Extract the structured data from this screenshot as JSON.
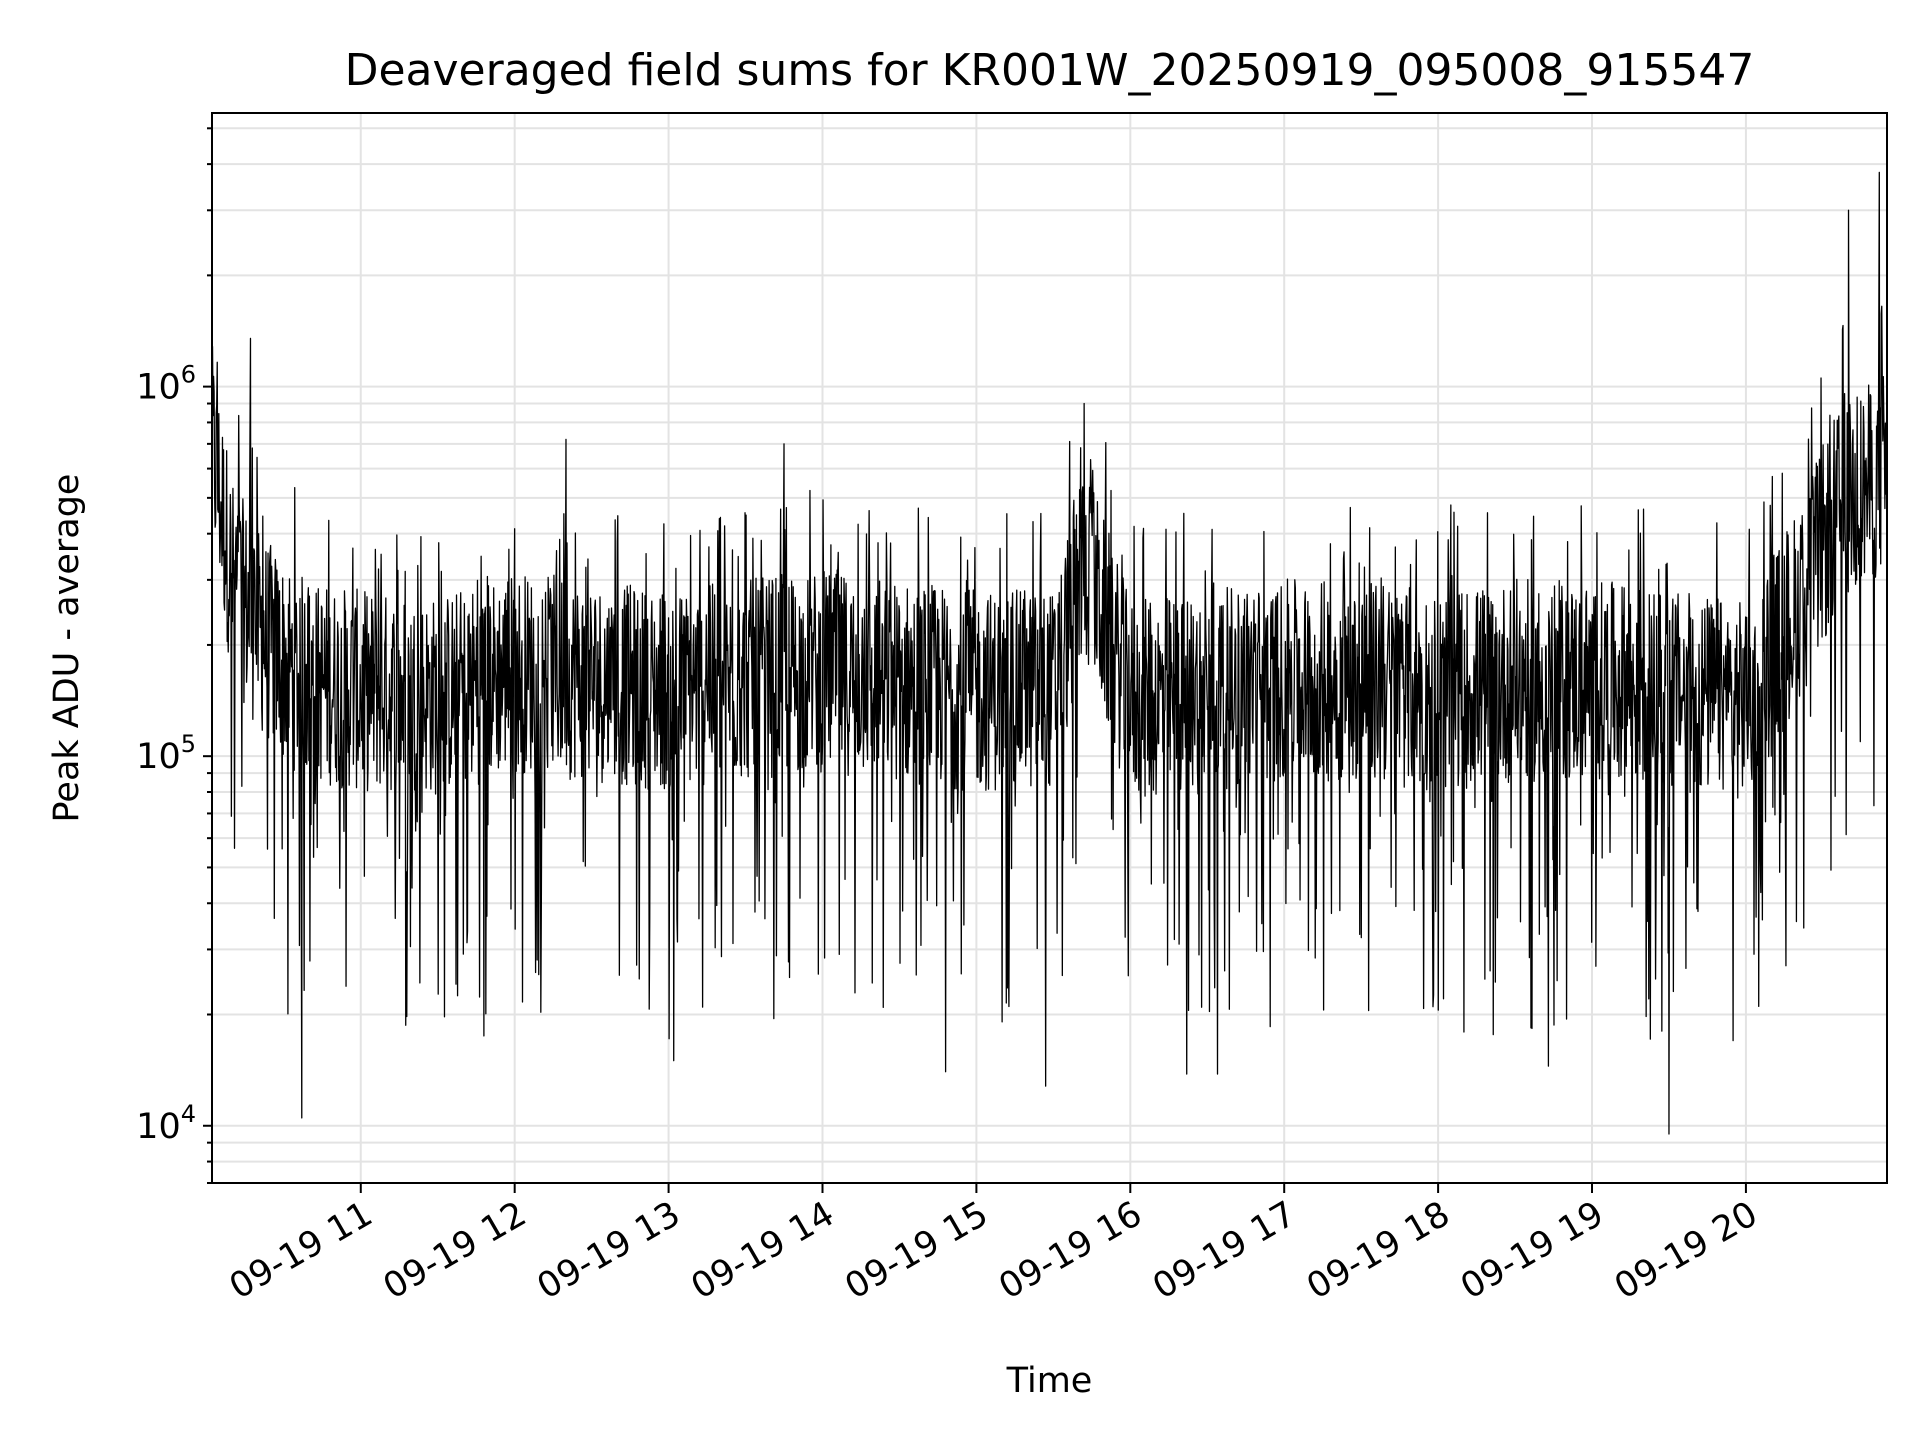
{
  "chart_data": {
    "type": "line",
    "title": "Deaveraged field sums for KR001W_20250919_095008_915547",
    "xlabel": "Time",
    "ylabel": "Peak ADU - average",
    "yscale": "log",
    "ylim": [
      7000,
      5500000
    ],
    "xlim": [
      "2025-09-19T10:02:00",
      "2025-09-19T20:55:00"
    ],
    "grid": true,
    "line_color": "#000000",
    "x_ticks": [
      {
        "label": "09-19 11",
        "value": "2025-09-19T11:00:00"
      },
      {
        "label": "09-19 12",
        "value": "2025-09-19T12:00:00"
      },
      {
        "label": "09-19 13",
        "value": "2025-09-19T13:00:00"
      },
      {
        "label": "09-19 14",
        "value": "2025-09-19T14:00:00"
      },
      {
        "label": "09-19 15",
        "value": "2025-09-19T15:00:00"
      },
      {
        "label": "09-19 16",
        "value": "2025-09-19T16:00:00"
      },
      {
        "label": "09-19 17",
        "value": "2025-09-19T17:00:00"
      },
      {
        "label": "09-19 18",
        "value": "2025-09-19T18:00:00"
      },
      {
        "label": "09-19 19",
        "value": "2025-09-19T19:00:00"
      },
      {
        "label": "09-19 20",
        "value": "2025-09-19T20:00:00"
      }
    ],
    "y_ticks": [
      {
        "base": "10",
        "exp": "4",
        "value": 10000
      },
      {
        "base": "10",
        "exp": "5",
        "value": 100000
      },
      {
        "base": "10",
        "exp": "6",
        "value": 1000000
      }
    ],
    "series": [
      {
        "values": [
          [
            "2025-09-19T10:02:00",
            700000
          ],
          [
            "2025-09-19T10:10:00",
            300000
          ],
          [
            "2025-09-19T10:20:00",
            220000
          ],
          [
            "2025-09-19T10:30:00",
            180000
          ],
          [
            "2025-09-19T10:40:00",
            160000
          ],
          [
            "2025-09-19T11:00:00",
            150000
          ],
          [
            "2025-09-19T11:30:00",
            145000
          ],
          [
            "2025-09-19T12:00:00",
            170000
          ],
          [
            "2025-09-19T12:30:00",
            160000
          ],
          [
            "2025-09-19T13:00:00",
            150000
          ],
          [
            "2025-09-19T13:30:00",
            160000
          ],
          [
            "2025-09-19T14:00:00",
            170000
          ],
          [
            "2025-09-19T14:30:00",
            160000
          ],
          [
            "2025-09-19T15:00:00",
            150000
          ],
          [
            "2025-09-19T15:30:00",
            150000
          ],
          [
            "2025-09-19T15:42:00",
            350000
          ],
          [
            "2025-09-19T16:00:00",
            140000
          ],
          [
            "2025-09-19T16:30:00",
            150000
          ],
          [
            "2025-09-19T17:00:00",
            160000
          ],
          [
            "2025-09-19T17:30:00",
            160000
          ],
          [
            "2025-09-19T18:00:00",
            150000
          ],
          [
            "2025-09-19T18:30:00",
            160000
          ],
          [
            "2025-09-19T19:00:00",
            160000
          ],
          [
            "2025-09-19T19:30:00",
            150000
          ],
          [
            "2025-09-19T20:00:00",
            140000
          ],
          [
            "2025-09-19T20:20:00",
            250000
          ],
          [
            "2025-09-19T20:35:00",
            450000
          ],
          [
            "2025-09-19T20:55:00",
            600000
          ]
        ],
        "spikes": [
          [
            "2025-09-19T10:17:00",
            1350000
          ],
          [
            "2025-09-19T10:37:00",
            10500
          ],
          [
            "2025-09-19T11:48:00",
            17500
          ],
          [
            "2025-09-19T12:20:00",
            720000
          ],
          [
            "2025-09-19T13:02:00",
            15000
          ],
          [
            "2025-09-19T13:45:00",
            700000
          ],
          [
            "2025-09-19T14:48:00",
            14000
          ],
          [
            "2025-09-19T15:27:00",
            12800
          ],
          [
            "2025-09-19T15:42:00",
            900000
          ],
          [
            "2025-09-19T16:22:00",
            13800
          ],
          [
            "2025-09-19T16:34:00",
            13800
          ],
          [
            "2025-09-19T17:58:00",
            21000
          ],
          [
            "2025-09-19T18:43:00",
            14500
          ],
          [
            "2025-09-19T19:30:00",
            9500
          ],
          [
            "2025-09-19T19:55:00",
            17000
          ],
          [
            "2025-09-19T20:40:00",
            3000000
          ],
          [
            "2025-09-19T20:52:00",
            3800000
          ]
        ]
      }
    ]
  }
}
